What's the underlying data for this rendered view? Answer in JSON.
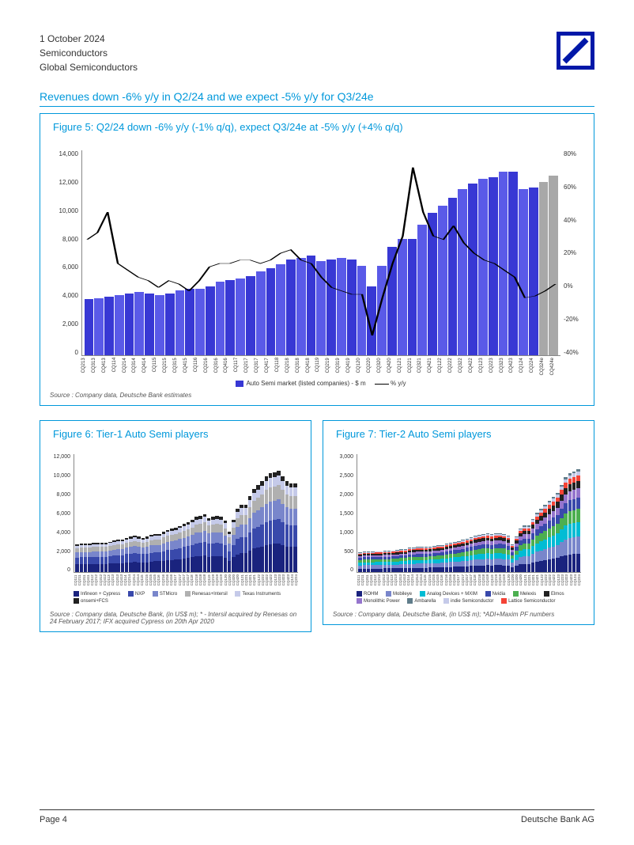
{
  "header": {
    "date": "1 October 2024",
    "line2": "Semiconductors",
    "line3": "Global Semiconductors"
  },
  "sectionTitle": "Revenues down -6% y/y in Q2/24 and we expect -5% y/y for Q3/24e",
  "fig5": {
    "title": "Figure 5: Q2/24 down -6% y/y (-1% q/q), expect Q3/24e at -5% y/y (+4% q/q)",
    "yLeft": [
      "14,000",
      "12,000",
      "10,000",
      "8,000",
      "6,000",
      "4,000",
      "2,000",
      "0"
    ],
    "yRight": [
      "80%",
      "60%",
      "40%",
      "20%",
      "0%",
      "-20%",
      "-40%"
    ],
    "quarters": [
      "CQ213",
      "CQ313",
      "CQ413",
      "CQ114",
      "CQ214",
      "CQ314",
      "CQ414",
      "CQ115",
      "CQ215",
      "CQ315",
      "CQ415",
      "CQ116",
      "CQ216",
      "CQ316",
      "CQ416",
      "CQ117",
      "CQ217",
      "CQ317",
      "CQ417",
      "CQ118",
      "CQ218",
      "CQ318",
      "CQ418",
      "CQ119",
      "CQ219",
      "CQ319",
      "CQ419",
      "CQ120",
      "CQ220",
      "CQ320",
      "CQ420",
      "CQ121",
      "CQ221",
      "CQ321",
      "CQ421",
      "CQ122",
      "CQ222",
      "CQ322",
      "CQ422",
      "CQ123",
      "CQ223",
      "CQ323",
      "CQ423",
      "CQ124",
      "CQ224",
      "CQ324e",
      "CQ424e"
    ],
    "bars": [
      3800,
      3900,
      4000,
      4100,
      4200,
      4300,
      4200,
      4100,
      4200,
      4400,
      4500,
      4500,
      4700,
      5000,
      5100,
      5200,
      5400,
      5700,
      5900,
      6200,
      6500,
      6600,
      6800,
      6400,
      6500,
      6600,
      6500,
      6100,
      4700,
      6100,
      7400,
      7900,
      7900,
      8900,
      9700,
      10200,
      10700,
      11300,
      11700,
      12000,
      12100,
      12500,
      12500,
      11300,
      11400,
      11800,
      12200
    ],
    "yoy": [
      28,
      32,
      44,
      14,
      10,
      6,
      4,
      0,
      4,
      2,
      -2,
      4,
      12,
      14,
      14,
      16,
      16,
      14,
      16,
      20,
      22,
      16,
      14,
      6,
      0,
      -2,
      -4,
      -4,
      -28,
      -6,
      14,
      30,
      70,
      44,
      30,
      28,
      36,
      26,
      20,
      16,
      14,
      10,
      6,
      -6,
      -5,
      -2,
      2
    ],
    "barMax": 14000,
    "yoyMin": -40,
    "yoyMax": 80,
    "futureFrom": 45,
    "legendBar": "Auto Semi market (listed companies) - $ m",
    "legendLine": "% y/y",
    "source": "Source : Company data, Deutsche Bank estimates",
    "barColor": "#3838d4",
    "barFuture": "#a8a8a8",
    "lineColor": "#000"
  },
  "fig6": {
    "title": "Figure 6: Tier-1 Auto Semi players",
    "y": [
      "12,000",
      "10,000",
      "8,000",
      "6,000",
      "4,000",
      "2,000",
      "0"
    ],
    "max": 12000,
    "quarters": [
      "CQ111",
      "CQ211",
      "CQ311",
      "CQ411",
      "CQ112",
      "CQ212",
      "CQ312",
      "CQ412",
      "CQ113",
      "CQ213",
      "CQ313",
      "CQ413",
      "CQ114",
      "CQ214",
      "CQ314",
      "CQ414",
      "CQ115",
      "CQ215",
      "CQ315",
      "CQ415",
      "CQ116",
      "CQ216",
      "CQ316",
      "CQ416",
      "CQ117",
      "CQ217",
      "CQ317",
      "CQ417",
      "CQ118",
      "CQ218",
      "CQ318",
      "CQ418",
      "CQ119",
      "CQ219",
      "CQ319",
      "CQ419",
      "CQ120",
      "CQ220",
      "CQ320",
      "CQ420",
      "CQ121",
      "CQ221",
      "CQ321",
      "CQ421",
      "CQ122",
      "CQ222",
      "CQ322",
      "CQ422",
      "CQ123",
      "CQ223",
      "CQ323",
      "CQ423",
      "CQ124",
      "CQ224"
    ],
    "totals": [
      2800,
      2900,
      2900,
      2900,
      3000,
      3000,
      3000,
      3000,
      3100,
      3200,
      3300,
      3300,
      3500,
      3600,
      3700,
      3600,
      3500,
      3600,
      3800,
      3900,
      3900,
      4100,
      4300,
      4400,
      4500,
      4700,
      4900,
      5100,
      5300,
      5600,
      5700,
      5900,
      5500,
      5600,
      5700,
      5600,
      5200,
      4100,
      5300,
      6400,
      6800,
      6800,
      7700,
      8400,
      8800,
      9200,
      9700,
      10000,
      10100,
      10300,
      9700,
      9200,
      9000,
      9000
    ],
    "colors": [
      "#1a237e",
      "#3949ab",
      "#7986cb",
      "#b0b0b0",
      "#c5cae9",
      "#212121"
    ],
    "legend": [
      {
        "c": "#1a237e",
        "t": "Infineon + Cypress"
      },
      {
        "c": "#3949ab",
        "t": "NXP"
      },
      {
        "c": "#7986cb",
        "t": "STMicro"
      },
      {
        "c": "#b0b0b0",
        "t": "Renesas+Intersil"
      },
      {
        "c": "#c5cae9",
        "t": "Texas Instruments"
      },
      {
        "c": "#212121",
        "t": "onsemi+FCS"
      }
    ],
    "source": "Source : Company data, Deutsche Bank, (in US$ m); * - Intersil acquired by Renesas on 24 February 2017; IFX acquired Cypress on 20th Apr 2020"
  },
  "fig7": {
    "title": "Figure 7: Tier-2 Auto Semi players",
    "y": [
      "3,000",
      "2,500",
      "2,000",
      "1,500",
      "1,000",
      "500",
      "0"
    ],
    "max": 3000,
    "quarters": [
      "CQ111",
      "CQ211",
      "CQ311",
      "CQ411",
      "CQ112",
      "CQ212",
      "CQ312",
      "CQ412",
      "CQ113",
      "CQ213",
      "CQ313",
      "CQ413",
      "CQ114",
      "CQ214",
      "CQ314",
      "CQ414",
      "CQ115",
      "CQ215",
      "CQ315",
      "CQ415",
      "CQ116",
      "CQ216",
      "CQ316",
      "CQ416",
      "CQ117",
      "CQ217",
      "CQ317",
      "CQ417",
      "CQ118",
      "CQ218",
      "CQ318",
      "CQ418",
      "CQ119",
      "CQ219",
      "CQ319",
      "CQ419",
      "CQ120",
      "CQ220",
      "CQ320",
      "CQ420",
      "CQ121",
      "CQ221",
      "CQ321",
      "CQ421",
      "CQ122",
      "CQ222",
      "CQ322",
      "CQ422",
      "CQ123",
      "CQ223",
      "CQ323",
      "CQ423",
      "CQ124",
      "CQ224"
    ],
    "totals": [
      500,
      520,
      520,
      520,
      530,
      530,
      540,
      540,
      550,
      560,
      580,
      580,
      620,
      630,
      640,
      640,
      640,
      650,
      670,
      680,
      690,
      720,
      750,
      770,
      790,
      820,
      850,
      880,
      920,
      950,
      970,
      980,
      960,
      980,
      990,
      970,
      920,
      700,
      900,
      1100,
      1180,
      1180,
      1350,
      1500,
      1600,
      1700,
      1800,
      1900,
      2000,
      2200,
      2400,
      2500,
      2550,
      2600
    ],
    "colors": [
      "#1a237e",
      "#7986cb",
      "#00bcd4",
      "#4caf50",
      "#3949ab",
      "#9575cd",
      "#212121",
      "#f44336",
      "#c5cae9",
      "#607d8b"
    ],
    "legend": [
      {
        "c": "#1a237e",
        "t": "ROHM"
      },
      {
        "c": "#7986cb",
        "t": "Mobileye"
      },
      {
        "c": "#00bcd4",
        "t": "Analog Devices + MXIM"
      },
      {
        "c": "#3949ab",
        "t": "Nvidia"
      },
      {
        "c": "#4caf50",
        "t": "Melexis"
      },
      {
        "c": "#212121",
        "t": "Elmos"
      },
      {
        "c": "#9575cd",
        "t": "Monolithic Power"
      },
      {
        "c": "#607d8b",
        "t": "Ambarella"
      },
      {
        "c": "#c5cae9",
        "t": "indie Semiconductor"
      },
      {
        "c": "#f44336",
        "t": "Lattice Semiconductor"
      }
    ],
    "source": "Source : Company data, Deutsche Bank, (in US$ m); *ADI+Maxim PF numbers"
  },
  "footer": {
    "left": "Page 4",
    "right": "Deutsche Bank AG"
  }
}
